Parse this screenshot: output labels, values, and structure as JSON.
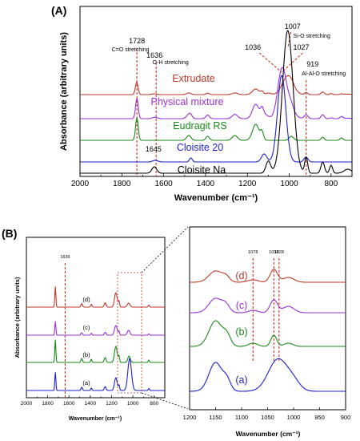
{
  "colors": {
    "extrudate": "#c0392b",
    "physical": "#9b30d9",
    "eudragit": "#1a8a1a",
    "cloisite20": "#1f1fd0",
    "cloisiteNa": "#000000",
    "marker": "#c0392b"
  },
  "chart_data": [
    {
      "type": "line",
      "panel_label": "(A)",
      "xlabel": "Wavenumber (cm⁻¹)",
      "ylabel": "Absorbance (arbitrary units)",
      "xlim": [
        2000,
        700
      ],
      "x_reversed": true,
      "x_ticks": [
        "2000",
        "1800",
        "1600",
        "1400",
        "1200",
        "1000",
        "800"
      ],
      "series": [
        {
          "name": "Extrudate",
          "color": "#c0392b",
          "offset": 0.8,
          "amp": 0.18
        },
        {
          "name": "Physical mixture",
          "color": "#9b30d9",
          "offset": 0.6,
          "amp": 0.42
        },
        {
          "name": "Eudragit RS",
          "color": "#1a8a1a",
          "offset": 0.4,
          "amp": 0.4
        },
        {
          "name": "Cloisite 20",
          "color": "#1f1fd0",
          "offset": 0.2,
          "amp": 0.42
        },
        {
          "name": "Cloisite Na",
          "color": "#000000",
          "offset": 0.0,
          "amp": 0.62
        }
      ],
      "annotations": [
        {
          "text": "1728",
          "sub": "C=O stretching",
          "x": 1728
        },
        {
          "text": "1636",
          "sub": "O-H stretching",
          "x": 1636
        },
        {
          "text": "1645",
          "x": 1645
        },
        {
          "text": "1007",
          "sub": "Si-O stretching",
          "x": 1007
        },
        {
          "text": "1036",
          "x": 1036
        },
        {
          "text": "1027",
          "x": 1027
        },
        {
          "text": "919",
          "sub": "Al-Al-O stretching",
          "x": 919
        }
      ]
    },
    {
      "type": "line",
      "panel_label": "(B)",
      "xlabel": "Wavenumber (cm⁻¹)",
      "ylabel": "Absorbance (arbitrary units)",
      "xlim": [
        2000,
        700
      ],
      "x_reversed": true,
      "x_ticks": [
        "2000",
        "1800",
        "1600",
        "1400",
        "1200",
        "1000",
        "800"
      ],
      "series_labels": [
        "(d)",
        "(c)",
        "(b)",
        "(a)"
      ],
      "annotations": [
        {
          "text": "1636",
          "x": 1636
        }
      ]
    },
    {
      "type": "line",
      "panel_label": "",
      "xlabel": "Wavenumber (cm⁻¹)",
      "ylabel": "",
      "xlim": [
        1200,
        900
      ],
      "x_reversed": true,
      "x_ticks": [
        "1200",
        "1150",
        "1100",
        "1050",
        "1000",
        "950",
        "900"
      ],
      "series_labels": [
        "(d)",
        "(c)",
        "(b)",
        "(a)"
      ],
      "annotations": [
        {
          "text": "1078",
          "x": 1078
        },
        {
          "text": "1038",
          "x": 1038
        },
        {
          "text": "1028",
          "x": 1028
        }
      ]
    }
  ]
}
